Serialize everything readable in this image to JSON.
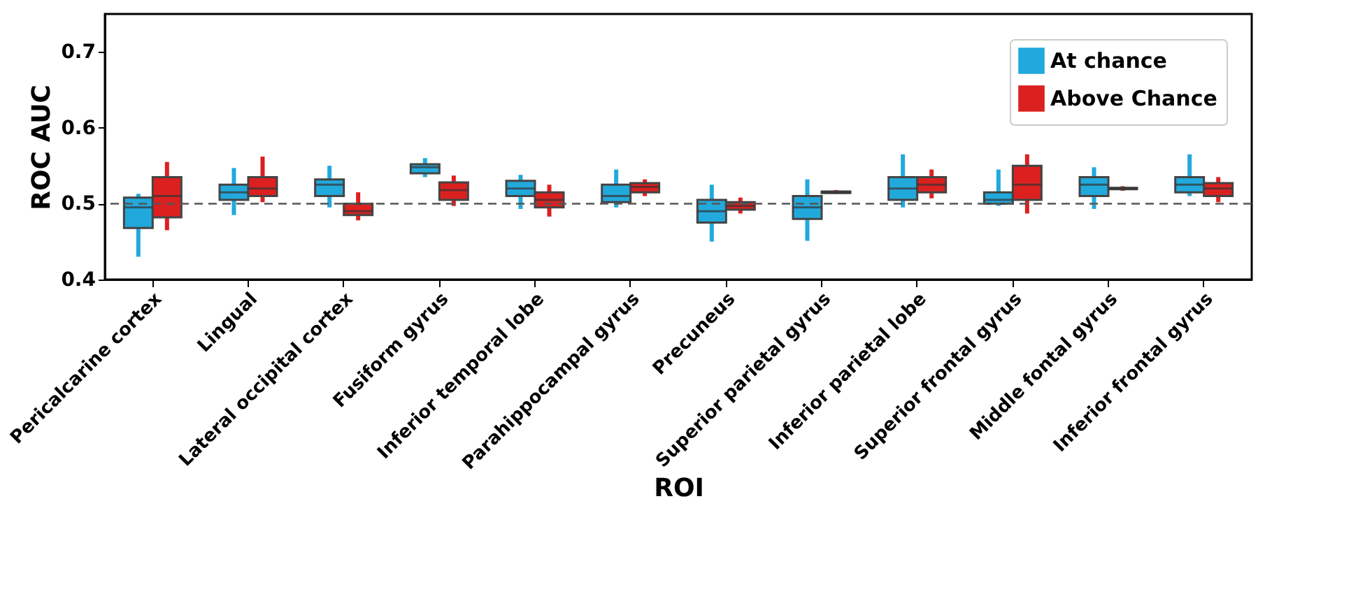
{
  "chart_data": {
    "type": "box",
    "xlabel": "ROI",
    "ylabel": "ROC AUC",
    "categories": [
      "Pericalcarine cortex",
      "Lingual",
      "Lateral occipital cortex",
      "Fusiform gyrus",
      "Inferior temporal lobe",
      "Parahippocampal gyrus",
      "Precuneus",
      "Superior parietal gyrus",
      "Inferior parietal lobe",
      "Superior frontal gyrus",
      "Middle fontal gyrus",
      "Inferior frontal gyrus"
    ],
    "series": [
      {
        "name": "At chance",
        "color": "#22a9dc",
        "boxes": [
          {
            "low": 0.43,
            "q1": 0.468,
            "median": 0.495,
            "q3": 0.508,
            "high": 0.513
          },
          {
            "low": 0.485,
            "q1": 0.505,
            "median": 0.515,
            "q3": 0.525,
            "high": 0.547
          },
          {
            "low": 0.495,
            "q1": 0.51,
            "median": 0.525,
            "q3": 0.532,
            "high": 0.55
          },
          {
            "low": 0.535,
            "q1": 0.54,
            "median": 0.548,
            "q3": 0.552,
            "high": 0.56
          },
          {
            "low": 0.493,
            "q1": 0.51,
            "median": 0.52,
            "q3": 0.53,
            "high": 0.538
          },
          {
            "low": 0.495,
            "q1": 0.502,
            "median": 0.51,
            "q3": 0.525,
            "high": 0.545
          },
          {
            "low": 0.45,
            "q1": 0.475,
            "median": 0.49,
            "q3": 0.505,
            "high": 0.525
          },
          {
            "low": 0.451,
            "q1": 0.48,
            "median": 0.495,
            "q3": 0.51,
            "high": 0.532
          },
          {
            "low": 0.495,
            "q1": 0.505,
            "median": 0.52,
            "q3": 0.535,
            "high": 0.565
          },
          {
            "low": 0.497,
            "q1": 0.5,
            "median": 0.505,
            "q3": 0.515,
            "high": 0.545
          },
          {
            "low": 0.493,
            "q1": 0.51,
            "median": 0.525,
            "q3": 0.535,
            "high": 0.548
          },
          {
            "low": 0.51,
            "q1": 0.515,
            "median": 0.525,
            "q3": 0.535,
            "high": 0.565
          }
        ]
      },
      {
        "name": "Above Chance",
        "color": "#dc2020",
        "boxes": [
          {
            "low": 0.465,
            "q1": 0.482,
            "median": 0.51,
            "q3": 0.535,
            "high": 0.555
          },
          {
            "low": 0.502,
            "q1": 0.51,
            "median": 0.52,
            "q3": 0.535,
            "high": 0.562
          },
          {
            "low": 0.478,
            "q1": 0.485,
            "median": 0.49,
            "q3": 0.5,
            "high": 0.515
          },
          {
            "low": 0.497,
            "q1": 0.505,
            "median": 0.518,
            "q3": 0.528,
            "high": 0.537
          },
          {
            "low": 0.483,
            "q1": 0.495,
            "median": 0.505,
            "q3": 0.515,
            "high": 0.525
          },
          {
            "low": 0.51,
            "q1": 0.515,
            "median": 0.522,
            "q3": 0.527,
            "high": 0.532
          },
          {
            "low": 0.487,
            "q1": 0.492,
            "median": 0.497,
            "q3": 0.502,
            "high": 0.508
          },
          {
            "low": 0.513,
            "q1": 0.514,
            "median": 0.515,
            "q3": 0.516,
            "high": 0.518
          },
          {
            "low": 0.507,
            "q1": 0.515,
            "median": 0.525,
            "q3": 0.535,
            "high": 0.545
          },
          {
            "low": 0.487,
            "q1": 0.505,
            "median": 0.525,
            "q3": 0.55,
            "high": 0.565
          },
          {
            "low": 0.517,
            "q1": 0.519,
            "median": 0.52,
            "q3": 0.521,
            "high": 0.523
          },
          {
            "low": 0.502,
            "q1": 0.51,
            "median": 0.52,
            "q3": 0.527,
            "high": 0.535
          }
        ]
      }
    ],
    "ylim": [
      0.4,
      0.75
    ],
    "yticks": [
      0.4,
      0.5,
      0.6,
      0.7
    ],
    "ref_lines": [
      {
        "axis": "y",
        "value": 0.5,
        "line_style": "dashed",
        "color": "#555555"
      }
    ],
    "legend": "top right",
    "grid": false
  }
}
